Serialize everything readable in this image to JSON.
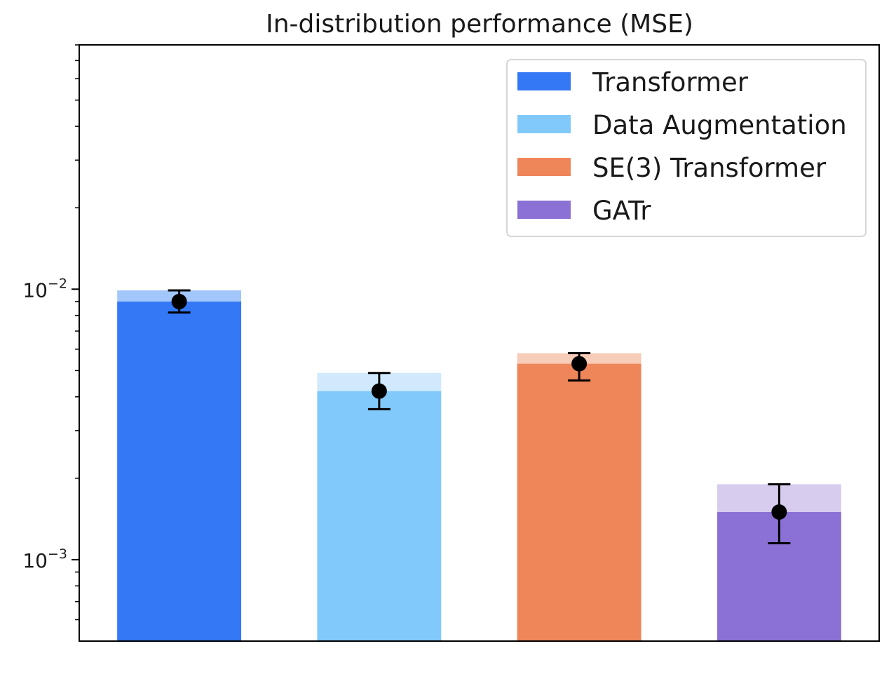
{
  "chart_data": {
    "type": "bar",
    "title": "In-distribution performance (MSE)",
    "xlabel": "",
    "ylabel": "",
    "yscale": "log",
    "ylim": [
      0.0005,
      0.08
    ],
    "major_ticks": [
      {
        "value": 0.01,
        "base": "10",
        "exp": "−2"
      },
      {
        "value": 0.001,
        "base": "10",
        "exp": "−3"
      }
    ],
    "minor_ticks": [
      0.0006,
      0.0007,
      0.0008,
      0.0009,
      0.002,
      0.003,
      0.004,
      0.005,
      0.006,
      0.007,
      0.008,
      0.009,
      0.02,
      0.03,
      0.04,
      0.05,
      0.06,
      0.07,
      0.08
    ],
    "legend_position": "upper right",
    "series": [
      {
        "name": "Transformer",
        "color": "#3478f6",
        "light_color": "#a3c7fa",
        "value": 0.009,
        "upper": 0.0099,
        "lower": 0.0082
      },
      {
        "name": "Data Augmentation",
        "color": "#82c9fb",
        "light_color": "#d0e9fd",
        "value": 0.0042,
        "upper": 0.0049,
        "lower": 0.0036
      },
      {
        "name": "SE(3) Transformer",
        "color": "#ee865a",
        "light_color": "#f7ccb9",
        "value": 0.0053,
        "upper": 0.0058,
        "lower": 0.0046
      },
      {
        "name": "GATr",
        "color": "#8b71d5",
        "light_color": "#d8ccee",
        "value": 0.0015,
        "upper": 0.0019,
        "lower": 0.00115
      }
    ]
  }
}
